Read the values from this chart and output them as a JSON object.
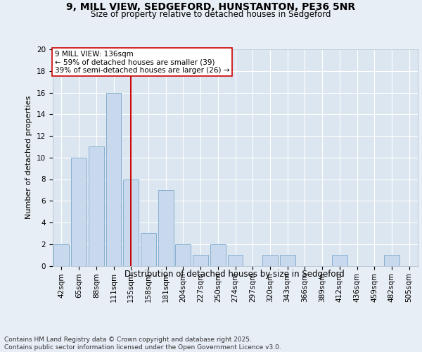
{
  "title_line1": "9, MILL VIEW, SEDGEFORD, HUNSTANTON, PE36 5NR",
  "title_line2": "Size of property relative to detached houses in Sedgeford",
  "xlabel": "Distribution of detached houses by size in Sedgeford",
  "ylabel": "Number of detached properties",
  "categories": [
    "42sqm",
    "65sqm",
    "88sqm",
    "111sqm",
    "135sqm",
    "158sqm",
    "181sqm",
    "204sqm",
    "227sqm",
    "250sqm",
    "274sqm",
    "297sqm",
    "320sqm",
    "343sqm",
    "366sqm",
    "389sqm",
    "412sqm",
    "436sqm",
    "459sqm",
    "482sqm",
    "505sqm"
  ],
  "values": [
    2,
    10,
    11,
    16,
    8,
    3,
    7,
    2,
    1,
    2,
    1,
    0,
    1,
    1,
    0,
    0,
    1,
    0,
    0,
    1,
    0
  ],
  "highlight_index": 4,
  "bar_color": "#c9d9ed",
  "bar_edge_color": "#7aa8cc",
  "highlight_line_color": "#cc0000",
  "annotation_text": "9 MILL VIEW: 136sqm\n← 59% of detached houses are smaller (39)\n39% of semi-detached houses are larger (26) →",
  "annotation_box_color": "#ffffff",
  "annotation_box_edge": "#cc0000",
  "ylim": [
    0,
    20
  ],
  "yticks": [
    0,
    2,
    4,
    6,
    8,
    10,
    12,
    14,
    16,
    18,
    20
  ],
  "footer_line1": "Contains HM Land Registry data © Crown copyright and database right 2025.",
  "footer_line2": "Contains public sector information licensed under the Open Government Licence v3.0.",
  "bg_color": "#e8eef5",
  "plot_bg_color": "#dce6f0",
  "grid_color": "#ffffff",
  "title_fontsize": 10,
  "subtitle_fontsize": 8.5,
  "ylabel_fontsize": 8,
  "xlabel_fontsize": 8.5,
  "tick_fontsize": 7.5,
  "annotation_fontsize": 7.5,
  "footer_fontsize": 6.5
}
